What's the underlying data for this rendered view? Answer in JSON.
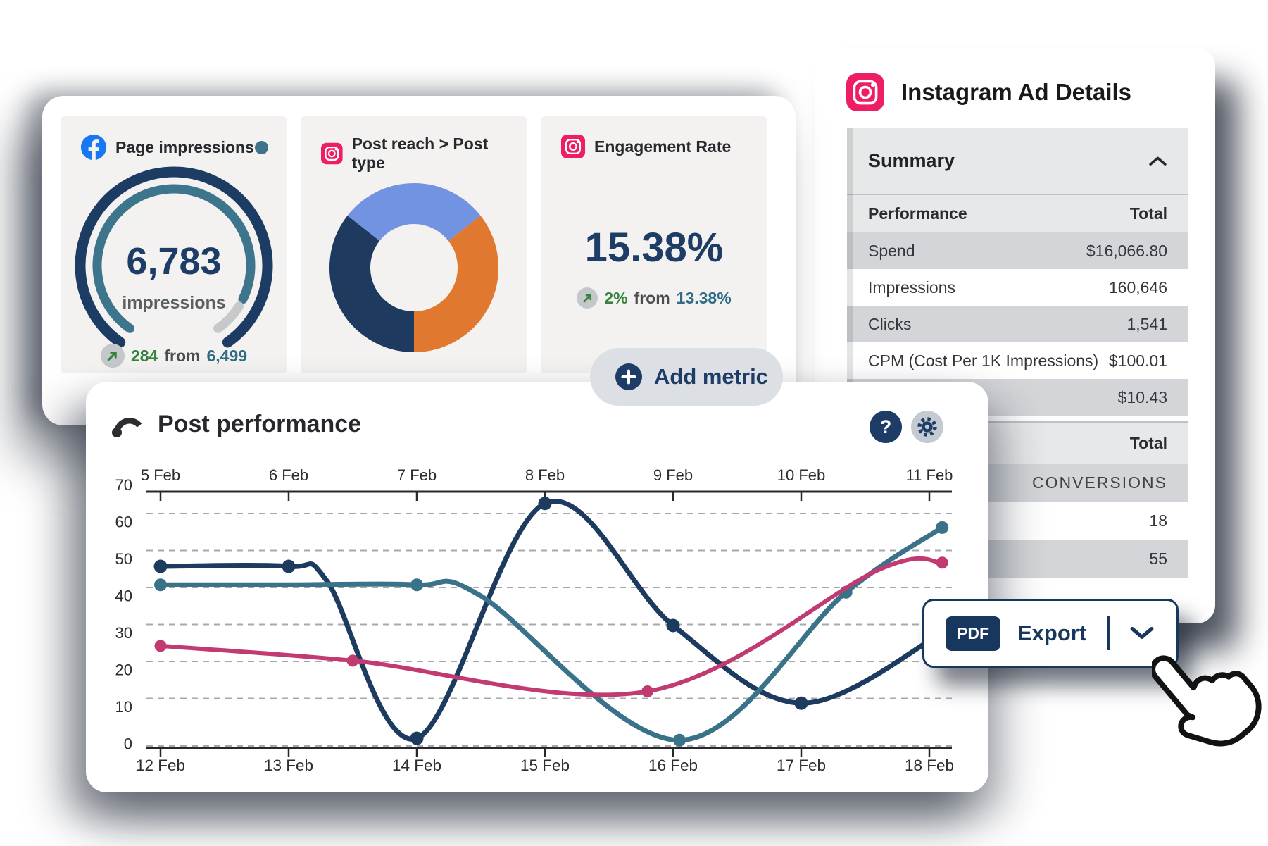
{
  "cards": {
    "metrics": {
      "page_impressions": {
        "icon": "facebook-icon",
        "title": "Page impressions",
        "value": "6,783",
        "unit": "impressions",
        "trend": "up",
        "delta": "284",
        "from_label": "from",
        "previous": "6,499"
      },
      "post_reach": {
        "icon": "instagram-icon",
        "title": "Post reach > Post type"
      },
      "engagement": {
        "icon": "instagram-icon",
        "title": "Engagement Rate",
        "value": "15.38%",
        "trend": "up",
        "delta": "2%",
        "from_label": "from",
        "previous": "13.38%"
      },
      "add_metric_label": "Add metric"
    },
    "instagram_ad_details": {
      "title": "Instagram Ad Details",
      "summary_label": "Summary",
      "performance_table": {
        "header": {
          "label": "Performance",
          "value": "Total"
        },
        "rows": [
          {
            "label": "Spend",
            "value": "$16,066.80"
          },
          {
            "label": "Impressions",
            "value": "160,646"
          },
          {
            "label": "Clicks",
            "value": "1,541"
          },
          {
            "label": "CPM (Cost Per 1K Impressions)",
            "value": "$100.01"
          },
          {
            "label": "",
            "value": "$10.43"
          }
        ]
      },
      "conversions_table": {
        "header": "Total",
        "rows": [
          "CONVERSIONS",
          "18",
          "55"
        ]
      }
    },
    "post_performance": {
      "title": "Post performance",
      "help_glyph": "?"
    },
    "export": {
      "badge": "PDF",
      "label": "Export"
    }
  },
  "colors": {
    "navy": "#1d3c66",
    "teal": "#3a7389",
    "pink": "#c23a72",
    "green": "#35823f",
    "facebook_blue": "#1877f2",
    "instagram_pink": "#ed1e63",
    "orange": "#e0782f",
    "cornflower": "#7292e2",
    "gray_row": "#d3d5d8"
  },
  "chart_data": [
    {
      "type": "line",
      "title": "Post performance",
      "x_top_labels": [
        "5 Feb",
        "6 Feb",
        "7 Feb",
        "8 Feb",
        "9 Feb",
        "10 Feb",
        "11 Feb"
      ],
      "x_bottom_labels": [
        "12 Feb",
        "13 Feb",
        "14 Feb",
        "15 Feb",
        "16 Feb",
        "17 Feb",
        "18 Feb"
      ],
      "y_ticks": [
        0,
        10,
        20,
        30,
        40,
        50,
        60,
        70
      ],
      "ylim": [
        0,
        70
      ],
      "xlim": [
        12,
        18
      ],
      "grid": "dashed-horizontal",
      "legend": "none",
      "series": [
        {
          "name": "navy",
          "color": "#1d3a5f",
          "stroke_width": 7,
          "marker_radius": 9.5,
          "points": [
            [
              12,
              48
            ],
            [
              13,
              48
            ],
            [
              13.3,
              44
            ],
            [
              14,
              1.5
            ],
            [
              15,
              65
            ],
            [
              16,
              32
            ],
            [
              17,
              11
            ],
            [
              18.1,
              30
            ]
          ],
          "markers": [
            [
              12,
              48
            ],
            [
              13,
              48
            ],
            [
              14,
              1.5
            ],
            [
              15,
              65
            ],
            [
              16,
              32
            ],
            [
              17,
              11
            ]
          ]
        },
        {
          "name": "teal",
          "color": "#3a7389",
          "stroke_width": 7,
          "marker_radius": 9,
          "points": [
            [
              12,
              43
            ],
            [
              13,
              43
            ],
            [
              14,
              43
            ],
            [
              14.5,
              40
            ],
            [
              16.05,
              1
            ],
            [
              17.35,
              41
            ],
            [
              18.1,
              58.5
            ]
          ],
          "markers": [
            [
              12,
              43
            ],
            [
              14,
              43
            ],
            [
              16.05,
              1
            ],
            [
              17.35,
              41
            ],
            [
              18.1,
              58.5
            ]
          ]
        },
        {
          "name": "pink",
          "color": "#c23a72",
          "stroke_width": 6,
          "marker_radius": 8.5,
          "points": [
            [
              12,
              26.5
            ],
            [
              13.5,
              22.5
            ],
            [
              15.8,
              14.2
            ],
            [
              17.6,
              47
            ],
            [
              18.1,
              49
            ]
          ],
          "markers": [
            [
              12,
              26.5
            ],
            [
              13.5,
              22.5
            ],
            [
              15.8,
              14.2
            ],
            [
              18.1,
              49
            ]
          ]
        }
      ]
    },
    {
      "type": "pie",
      "style": "donut",
      "title": "Post reach > Post type",
      "outer_radius": 120,
      "inner_radius": 62,
      "segments": [
        {
          "label": "segment-blue",
          "color": "#7292e2",
          "start_deg": -52,
          "end_deg": 52,
          "share_pct": 28.9
        },
        {
          "label": "segment-orange",
          "color": "#e0782f",
          "start_deg": 52,
          "end_deg": 180,
          "share_pct": 35.6
        },
        {
          "label": "segment-navy",
          "color": "#1e3a5e",
          "start_deg": 180,
          "end_deg": 308,
          "share_pct": 35.6
        }
      ]
    },
    {
      "type": "gauge",
      "title": "Page impressions",
      "value": 6783,
      "label": "impressions",
      "delta": 284,
      "previous": 6499,
      "arcs": [
        {
          "name": "outer-track",
          "color": "#1d3c63",
          "radius": 133,
          "stroke_width": 15,
          "start_deg": -145,
          "end_deg": 145
        },
        {
          "name": "inner-progress",
          "color": "#3d768c",
          "radius": 109,
          "stroke_width": 13,
          "start_deg": -145,
          "end_deg": 116
        },
        {
          "name": "inner-remainder",
          "color": "#c7c8ca",
          "radius": 109,
          "stroke_width": 13,
          "start_deg": 122,
          "end_deg": 145
        }
      ]
    }
  ]
}
